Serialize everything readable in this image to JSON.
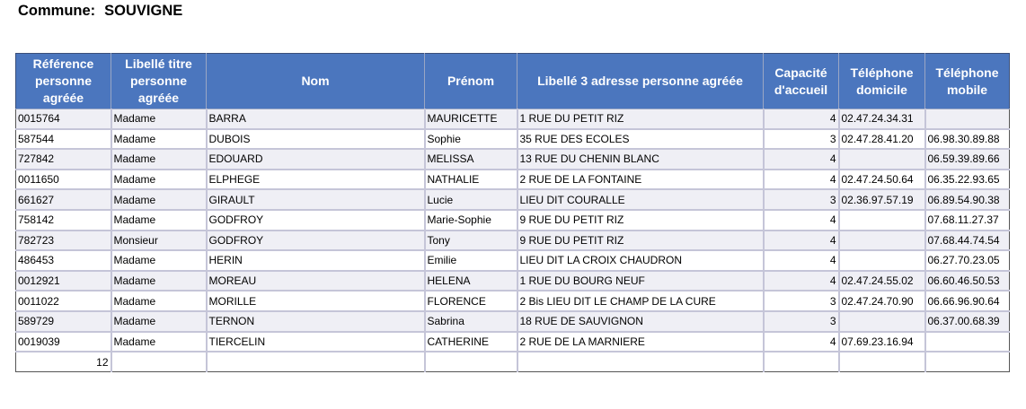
{
  "commune": {
    "label": "Commune:",
    "value": "SOUVIGNE"
  },
  "table": {
    "headers": [
      {
        "key": "reference",
        "label": "Référence personne agréée"
      },
      {
        "key": "titre",
        "label": "Libellé titre personne agréée"
      },
      {
        "key": "nom",
        "label": "Nom"
      },
      {
        "key": "prenom",
        "label": "Prénom"
      },
      {
        "key": "adresse",
        "label": "Libellé 3 adresse personne agréée"
      },
      {
        "key": "capacite",
        "label": "Capacité d'accueil"
      },
      {
        "key": "tel_domicile",
        "label": "Téléphone domicile"
      },
      {
        "key": "tel_mobile",
        "label": "Téléphone mobile"
      }
    ],
    "rows": [
      {
        "reference": "0015764",
        "titre": "Madame",
        "nom": "BARRA",
        "prenom": "MAURICETTE",
        "adresse": "1 RUE DU PETIT RIZ",
        "capacite": "4",
        "tel_domicile": "02.47.24.34.31",
        "tel_mobile": ""
      },
      {
        "reference": "587544",
        "titre": "Madame",
        "nom": "DUBOIS",
        "prenom": "Sophie",
        "adresse": "35 RUE DES ECOLES",
        "capacite": "3",
        "tel_domicile": "02.47.28.41.20",
        "tel_mobile": "06.98.30.89.88"
      },
      {
        "reference": "727842",
        "titre": "Madame",
        "nom": "EDOUARD",
        "prenom": "MELISSA",
        "adresse": "13 RUE DU CHENIN BLANC",
        "capacite": "4",
        "tel_domicile": "",
        "tel_mobile": "06.59.39.89.66"
      },
      {
        "reference": "0011650",
        "titre": "Madame",
        "nom": "ELPHEGE",
        "prenom": "NATHALIE",
        "adresse": "2 RUE DE LA FONTAINE",
        "capacite": "4",
        "tel_domicile": "02.47.24.50.64",
        "tel_mobile": "06.35.22.93.65"
      },
      {
        "reference": "661627",
        "titre": "Madame",
        "nom": "GIRAULT",
        "prenom": "Lucie",
        "adresse": "LIEU DIT COURALLE",
        "capacite": "3",
        "tel_domicile": "02.36.97.57.19",
        "tel_mobile": "06.89.54.90.38"
      },
      {
        "reference": "758142",
        "titre": "Madame",
        "nom": "GODFROY",
        "prenom": "Marie-Sophie",
        "adresse": "9 RUE DU PETIT RIZ",
        "capacite": "4",
        "tel_domicile": "",
        "tel_mobile": "07.68.11.27.37"
      },
      {
        "reference": "782723",
        "titre": "Monsieur",
        "nom": "GODFROY",
        "prenom": "Tony",
        "adresse": "9 RUE DU PETIT RIZ",
        "capacite": "4",
        "tel_domicile": "",
        "tel_mobile": "07.68.44.74.54"
      },
      {
        "reference": "486453",
        "titre": "Madame",
        "nom": "HERIN",
        "prenom": "Emilie",
        "adresse": "LIEU DIT LA CROIX CHAUDRON",
        "capacite": "4",
        "tel_domicile": "",
        "tel_mobile": "06.27.70.23.05"
      },
      {
        "reference": "0012921",
        "titre": "Madame",
        "nom": "MOREAU",
        "prenom": "HELENA",
        "adresse": "1 RUE DU BOURG NEUF",
        "capacite": "4",
        "tel_domicile": "02.47.24.55.02",
        "tel_mobile": "06.60.46.50.53"
      },
      {
        "reference": "0011022",
        "titre": "Madame",
        "nom": "MORILLE",
        "prenom": "FLORENCE",
        "adresse": "2 Bis LIEU DIT LE CHAMP DE LA CURE",
        "capacite": "3",
        "tel_domicile": "02.47.24.70.90",
        "tel_mobile": "06.66.96.90.64"
      },
      {
        "reference": "589729",
        "titre": "Madame",
        "nom": "TERNON",
        "prenom": "Sabrina",
        "adresse": "18 RUE DE SAUVIGNON",
        "capacite": "3",
        "tel_domicile": "",
        "tel_mobile": "06.37.00.68.39"
      },
      {
        "reference": "0019039",
        "titre": "Madame",
        "nom": "TIERCELIN",
        "prenom": "CATHERINE",
        "adresse": "2 RUE DE LA MARNIERE",
        "capacite": "4",
        "tel_domicile": "07.69.23.16.94",
        "tel_mobile": ""
      }
    ],
    "total_count": "12"
  }
}
